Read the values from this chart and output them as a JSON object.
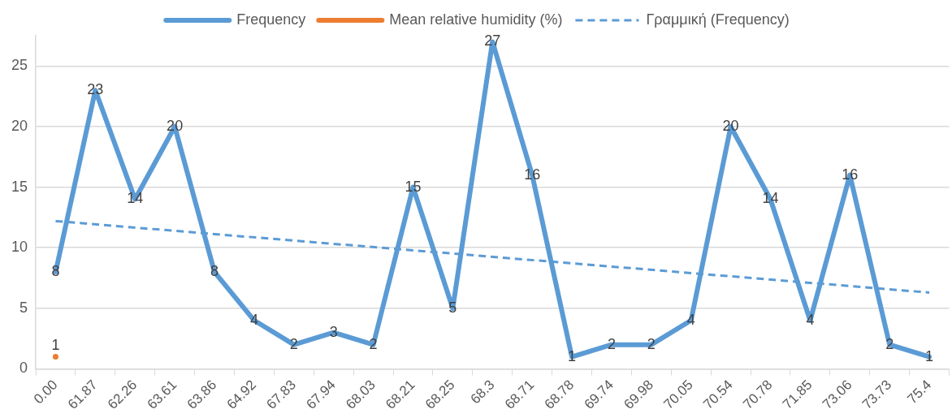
{
  "chart_data": {
    "type": "line",
    "categories": [
      "0.00",
      "61.87",
      "62.26",
      "63.61",
      "63.86",
      "64.92",
      "67.83",
      "67.94",
      "68.03",
      "68.21",
      "68.25",
      "68.3",
      "68.71",
      "68.78",
      "69.74",
      "69.98",
      "70.05",
      "70.54",
      "70.78",
      "71.85",
      "73.06",
      "73.73",
      "75.4"
    ],
    "series": [
      {
        "name": "Frequency",
        "color": "#5b9bd5",
        "values": [
          8,
          23,
          14,
          20,
          8,
          4,
          2,
          3,
          2,
          15,
          5,
          27,
          16,
          1,
          2,
          2,
          4,
          20,
          14,
          4,
          16,
          2,
          1
        ],
        "value_labels": [
          "8",
          "23",
          "14",
          "20",
          "8",
          "4",
          "2",
          "3",
          "2",
          "15",
          "5",
          "27",
          "16",
          "1",
          "2",
          "2",
          "4",
          "20",
          "14",
          "4",
          "16",
          "2",
          "1"
        ]
      },
      {
        "name": "Mean relative humidity (%)",
        "color": "#ed7d31",
        "marker": "circle",
        "values": [
          1,
          null,
          null,
          null,
          null,
          null,
          null,
          null,
          null,
          null,
          null,
          null,
          null,
          null,
          null,
          null,
          null,
          null,
          null,
          null,
          null,
          null,
          null
        ],
        "value_labels": [
          "1",
          null,
          null,
          null,
          null,
          null,
          null,
          null,
          null,
          null,
          null,
          null,
          null,
          null,
          null,
          null,
          null,
          null,
          null,
          null,
          null,
          null,
          null
        ]
      },
      {
        "name": "Γραμμική (Frequency)",
        "color": "#5b9bd5",
        "line_style": "dashed",
        "values": [
          12.2,
          null,
          null,
          null,
          null,
          null,
          null,
          null,
          null,
          null,
          null,
          null,
          null,
          null,
          null,
          null,
          null,
          null,
          null,
          null,
          null,
          null,
          6.3
        ]
      }
    ],
    "ylim": [
      0,
      27.5
    ],
    "yticks": [
      0,
      5,
      10,
      15,
      20,
      25
    ],
    "grid": "y",
    "legend": "top",
    "marker": "none"
  }
}
